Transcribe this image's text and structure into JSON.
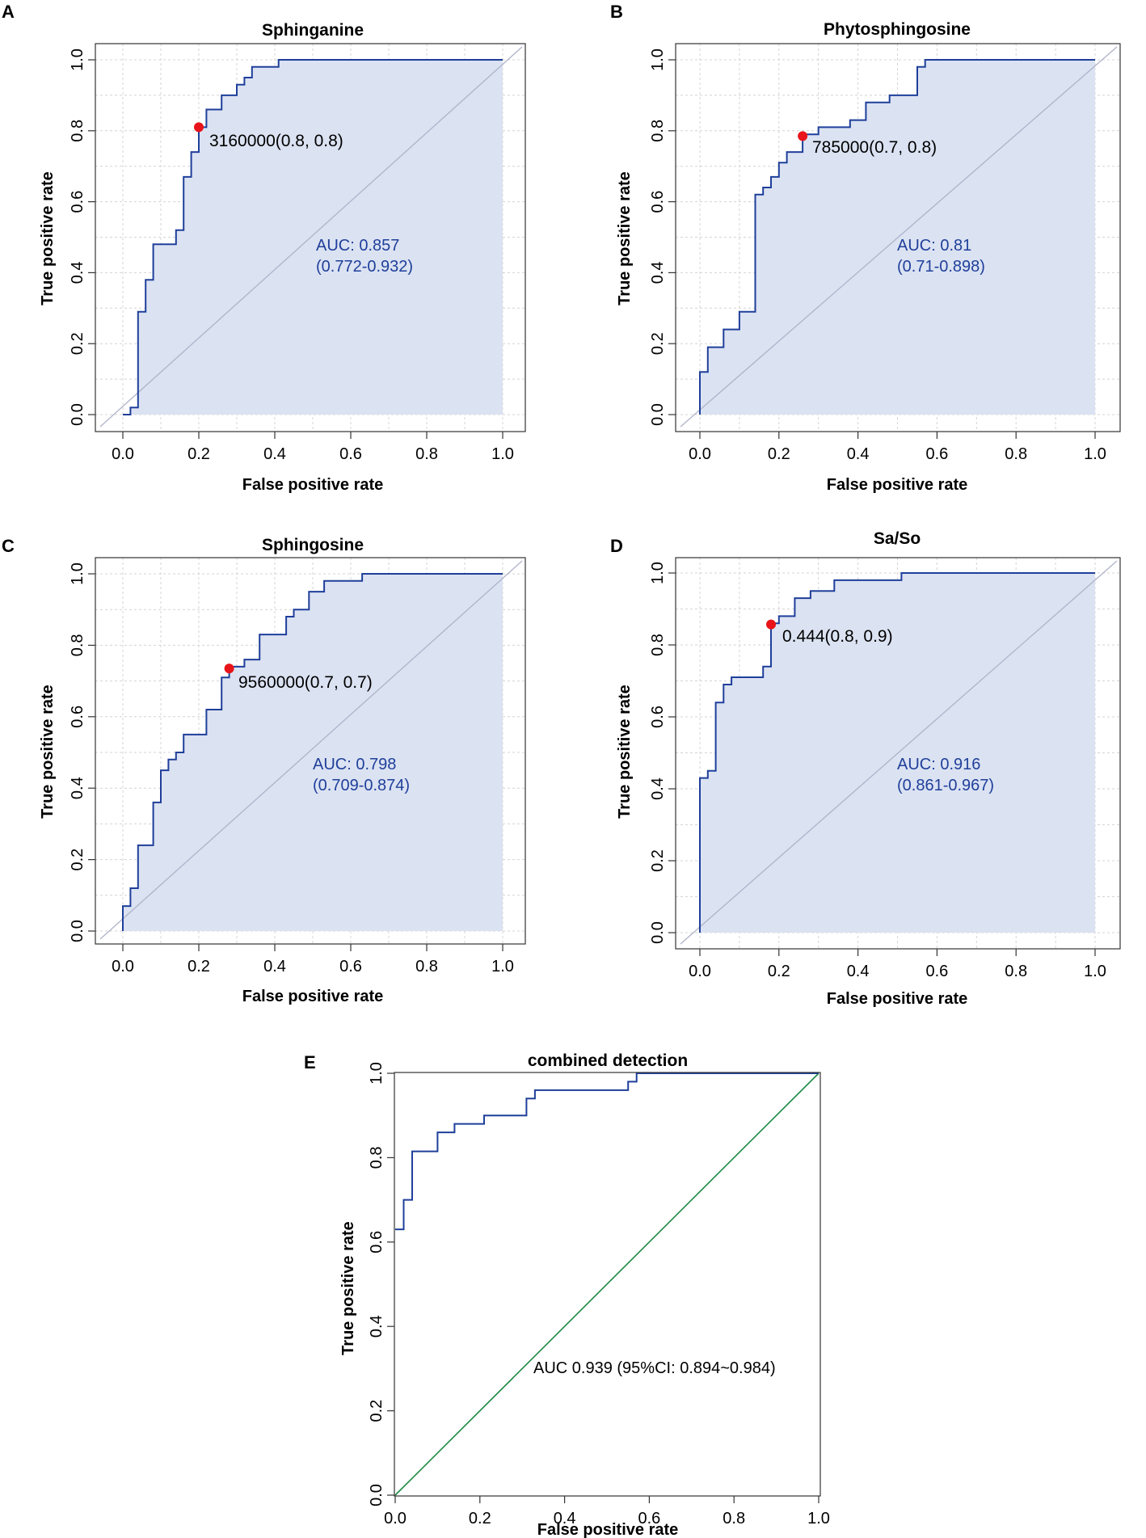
{
  "figure": {
    "panel_letters": [
      "A",
      "B",
      "C",
      "D",
      "E"
    ]
  },
  "colors": {
    "curve": "#1f3f9a",
    "fill": "#dbe2f2",
    "grid": "#d4d4d4",
    "diagonal_light": "#aeb3c9",
    "diagonal_green": "#1e8a43",
    "cutoff_point": "#e8141a",
    "auc_text": "#1f3f9a",
    "axis": "#333333"
  },
  "chart_data": [
    {
      "panel": "A",
      "type": "line",
      "title": "Sphinganine",
      "xlabel": "False positive rate",
      "ylabel": "True positive rate",
      "xlim": [
        0,
        1
      ],
      "ylim": [
        0,
        1
      ],
      "x_ticks": [
        "0.0",
        "0.2",
        "0.4",
        "0.6",
        "0.8",
        "1.0"
      ],
      "y_ticks": [
        "0.0",
        "0.2",
        "0.4",
        "0.6",
        "0.8",
        "1.0"
      ],
      "grid": true,
      "filled": true,
      "roc": [
        [
          0,
          0
        ],
        [
          0.02,
          0
        ],
        [
          0.02,
          0.02
        ],
        [
          0.04,
          0.02
        ],
        [
          0.04,
          0.29
        ],
        [
          0.06,
          0.29
        ],
        [
          0.06,
          0.38
        ],
        [
          0.08,
          0.38
        ],
        [
          0.08,
          0.48
        ],
        [
          0.14,
          0.48
        ],
        [
          0.14,
          0.52
        ],
        [
          0.16,
          0.52
        ],
        [
          0.16,
          0.67
        ],
        [
          0.18,
          0.67
        ],
        [
          0.18,
          0.74
        ],
        [
          0.2,
          0.74
        ],
        [
          0.2,
          0.81
        ],
        [
          0.22,
          0.81
        ],
        [
          0.22,
          0.86
        ],
        [
          0.26,
          0.86
        ],
        [
          0.26,
          0.9
        ],
        [
          0.3,
          0.9
        ],
        [
          0.3,
          0.93
        ],
        [
          0.32,
          0.93
        ],
        [
          0.32,
          0.95
        ],
        [
          0.34,
          0.95
        ],
        [
          0.34,
          0.98
        ],
        [
          0.41,
          0.98
        ],
        [
          0.41,
          1
        ],
        [
          1,
          1
        ]
      ],
      "cutoff": {
        "x": 0.2,
        "y": 0.81,
        "label": "3160000(0.8, 0.8)"
      },
      "auc": "AUC: 0.857",
      "ci": "(0.772-0.932)"
    },
    {
      "panel": "B",
      "type": "line",
      "title": "Phytosphingosine",
      "xlabel": "False positive rate",
      "ylabel": "True positive rate",
      "xlim": [
        0,
        1
      ],
      "ylim": [
        0,
        1
      ],
      "x_ticks": [
        "0.0",
        "0.2",
        "0.4",
        "0.6",
        "0.8",
        "1.0"
      ],
      "y_ticks": [
        "0.0",
        "0.2",
        "0.4",
        "0.6",
        "0.8",
        "1.0"
      ],
      "grid": true,
      "filled": true,
      "roc": [
        [
          0,
          0
        ],
        [
          0,
          0.12
        ],
        [
          0.02,
          0.12
        ],
        [
          0.02,
          0.19
        ],
        [
          0.06,
          0.19
        ],
        [
          0.06,
          0.24
        ],
        [
          0.1,
          0.24
        ],
        [
          0.1,
          0.29
        ],
        [
          0.14,
          0.29
        ],
        [
          0.14,
          0.62
        ],
        [
          0.16,
          0.62
        ],
        [
          0.16,
          0.64
        ],
        [
          0.18,
          0.64
        ],
        [
          0.18,
          0.67
        ],
        [
          0.2,
          0.67
        ],
        [
          0.2,
          0.71
        ],
        [
          0.22,
          0.71
        ],
        [
          0.22,
          0.74
        ],
        [
          0.26,
          0.74
        ],
        [
          0.26,
          0.79
        ],
        [
          0.3,
          0.79
        ],
        [
          0.3,
          0.81
        ],
        [
          0.38,
          0.81
        ],
        [
          0.38,
          0.83
        ],
        [
          0.42,
          0.83
        ],
        [
          0.42,
          0.88
        ],
        [
          0.48,
          0.88
        ],
        [
          0.48,
          0.9
        ],
        [
          0.55,
          0.9
        ],
        [
          0.55,
          0.98
        ],
        [
          0.57,
          0.98
        ],
        [
          0.57,
          1
        ],
        [
          1,
          1
        ]
      ],
      "cutoff": {
        "x": 0.26,
        "y": 0.785,
        "label": "785000(0.7, 0.8)"
      },
      "auc": "AUC: 0.81",
      "ci": "(0.71-0.898)"
    },
    {
      "panel": "C",
      "type": "line",
      "title": "Sphingosine",
      "xlabel": "False positive rate",
      "ylabel": "True positive rate",
      "xlim": [
        0,
        1
      ],
      "ylim": [
        0,
        1
      ],
      "x_ticks": [
        "0.0",
        "0.2",
        "0.4",
        "0.6",
        "0.8",
        "1.0"
      ],
      "y_ticks": [
        "0.0",
        "0.2",
        "0.4",
        "0.6",
        "0.8",
        "1.0"
      ],
      "grid": true,
      "filled": true,
      "roc": [
        [
          0,
          0
        ],
        [
          0,
          0.07
        ],
        [
          0.02,
          0.07
        ],
        [
          0.02,
          0.12
        ],
        [
          0.04,
          0.12
        ],
        [
          0.04,
          0.24
        ],
        [
          0.08,
          0.24
        ],
        [
          0.08,
          0.36
        ],
        [
          0.1,
          0.36
        ],
        [
          0.1,
          0.45
        ],
        [
          0.12,
          0.45
        ],
        [
          0.12,
          0.48
        ],
        [
          0.14,
          0.48
        ],
        [
          0.14,
          0.5
        ],
        [
          0.16,
          0.5
        ],
        [
          0.16,
          0.55
        ],
        [
          0.22,
          0.55
        ],
        [
          0.22,
          0.62
        ],
        [
          0.26,
          0.62
        ],
        [
          0.26,
          0.71
        ],
        [
          0.28,
          0.71
        ],
        [
          0.28,
          0.74
        ],
        [
          0.32,
          0.74
        ],
        [
          0.32,
          0.76
        ],
        [
          0.36,
          0.76
        ],
        [
          0.36,
          0.83
        ],
        [
          0.43,
          0.83
        ],
        [
          0.43,
          0.88
        ],
        [
          0.45,
          0.88
        ],
        [
          0.45,
          0.9
        ],
        [
          0.49,
          0.9
        ],
        [
          0.49,
          0.95
        ],
        [
          0.53,
          0.95
        ],
        [
          0.53,
          0.98
        ],
        [
          0.63,
          0.98
        ],
        [
          0.63,
          1
        ],
        [
          1,
          1
        ]
      ],
      "cutoff": {
        "x": 0.28,
        "y": 0.735,
        "label": "9560000(0.7, 0.7)"
      },
      "auc": "AUC: 0.798",
      "ci": "(0.709-0.874)"
    },
    {
      "panel": "D",
      "type": "line",
      "title": "Sa/So",
      "xlabel": "False positive rate",
      "ylabel": "True positive rate",
      "xlim": [
        0,
        1
      ],
      "ylim": [
        0,
        1
      ],
      "x_ticks": [
        "0.0",
        "0.2",
        "0.4",
        "0.6",
        "0.8",
        "1.0"
      ],
      "y_ticks": [
        "0.0",
        "0.2",
        "0.4",
        "0.6",
        "0.8",
        "1.0"
      ],
      "grid": true,
      "filled": true,
      "roc": [
        [
          0,
          0
        ],
        [
          0,
          0.43
        ],
        [
          0.02,
          0.43
        ],
        [
          0.02,
          0.45
        ],
        [
          0.04,
          0.45
        ],
        [
          0.04,
          0.64
        ],
        [
          0.06,
          0.64
        ],
        [
          0.06,
          0.69
        ],
        [
          0.08,
          0.69
        ],
        [
          0.08,
          0.71
        ],
        [
          0.16,
          0.71
        ],
        [
          0.16,
          0.74
        ],
        [
          0.18,
          0.74
        ],
        [
          0.18,
          0.86
        ],
        [
          0.2,
          0.86
        ],
        [
          0.2,
          0.88
        ],
        [
          0.24,
          0.88
        ],
        [
          0.24,
          0.93
        ],
        [
          0.28,
          0.93
        ],
        [
          0.28,
          0.95
        ],
        [
          0.34,
          0.95
        ],
        [
          0.34,
          0.98
        ],
        [
          0.51,
          0.98
        ],
        [
          0.51,
          1
        ],
        [
          1,
          1
        ]
      ],
      "cutoff": {
        "x": 0.18,
        "y": 0.857,
        "label": "0.444(0.8, 0.9)"
      },
      "auc": "AUC: 0.916",
      "ci": "(0.861-0.967)"
    },
    {
      "panel": "E",
      "type": "line",
      "title": "combined detection",
      "xlabel": "False positive rate",
      "ylabel": "True positive rate",
      "xlim": [
        0,
        1
      ],
      "ylim": [
        0,
        1
      ],
      "x_ticks": [
        "0.0",
        "0.2",
        "0.4",
        "0.6",
        "0.8",
        "1.0"
      ],
      "y_ticks": [
        "0.0",
        "0.2",
        "0.4",
        "0.6",
        "0.8",
        "1.0"
      ],
      "grid": false,
      "filled": false,
      "roc": [
        [
          0,
          0.63
        ],
        [
          0,
          0.63
        ],
        [
          0.02,
          0.63
        ],
        [
          0.02,
          0.7
        ],
        [
          0.04,
          0.7
        ],
        [
          0.04,
          0.815
        ],
        [
          0.1,
          0.815
        ],
        [
          0.1,
          0.86
        ],
        [
          0.14,
          0.86
        ],
        [
          0.14,
          0.88
        ],
        [
          0.21,
          0.88
        ],
        [
          0.21,
          0.9
        ],
        [
          0.31,
          0.9
        ],
        [
          0.31,
          0.94
        ],
        [
          0.33,
          0.94
        ],
        [
          0.33,
          0.96
        ],
        [
          0.55,
          0.96
        ],
        [
          0.55,
          0.98
        ],
        [
          0.57,
          0.98
        ],
        [
          0.57,
          1
        ],
        [
          1,
          1
        ]
      ],
      "auc": "AUC 0.939 (95%CI: 0.894~0.984)"
    }
  ]
}
